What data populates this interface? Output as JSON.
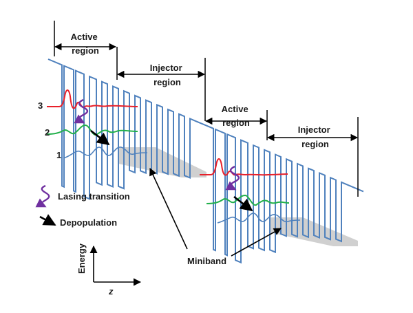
{
  "labels": {
    "active_region_1": [
      "Active",
      "region"
    ],
    "injector_region_1": [
      "Injector",
      "region"
    ],
    "active_region_2": [
      "Active",
      "region"
    ],
    "injector_region_2": [
      "Injector",
      "region"
    ],
    "level_3": "3",
    "level_2": "2",
    "level_1": "1",
    "lasing_transition": "Lasing transition",
    "depopulation": "Depopulation",
    "miniband": "Miniband",
    "energy_axis": "Energy",
    "z_axis": "z"
  },
  "colors": {
    "conduction_band": "#4f81bd",
    "level_3": "#e8202a",
    "level_2": "#22b04b",
    "level_1": "#4f81bd",
    "lasing_arrow": "#7030a0",
    "miniband_fill": "#c8c8c8",
    "arrow": "#000000"
  },
  "icons": {
    "lasing": "wavy-arrow-icon",
    "depopulation": "diagonal-arrow-icon"
  }
}
